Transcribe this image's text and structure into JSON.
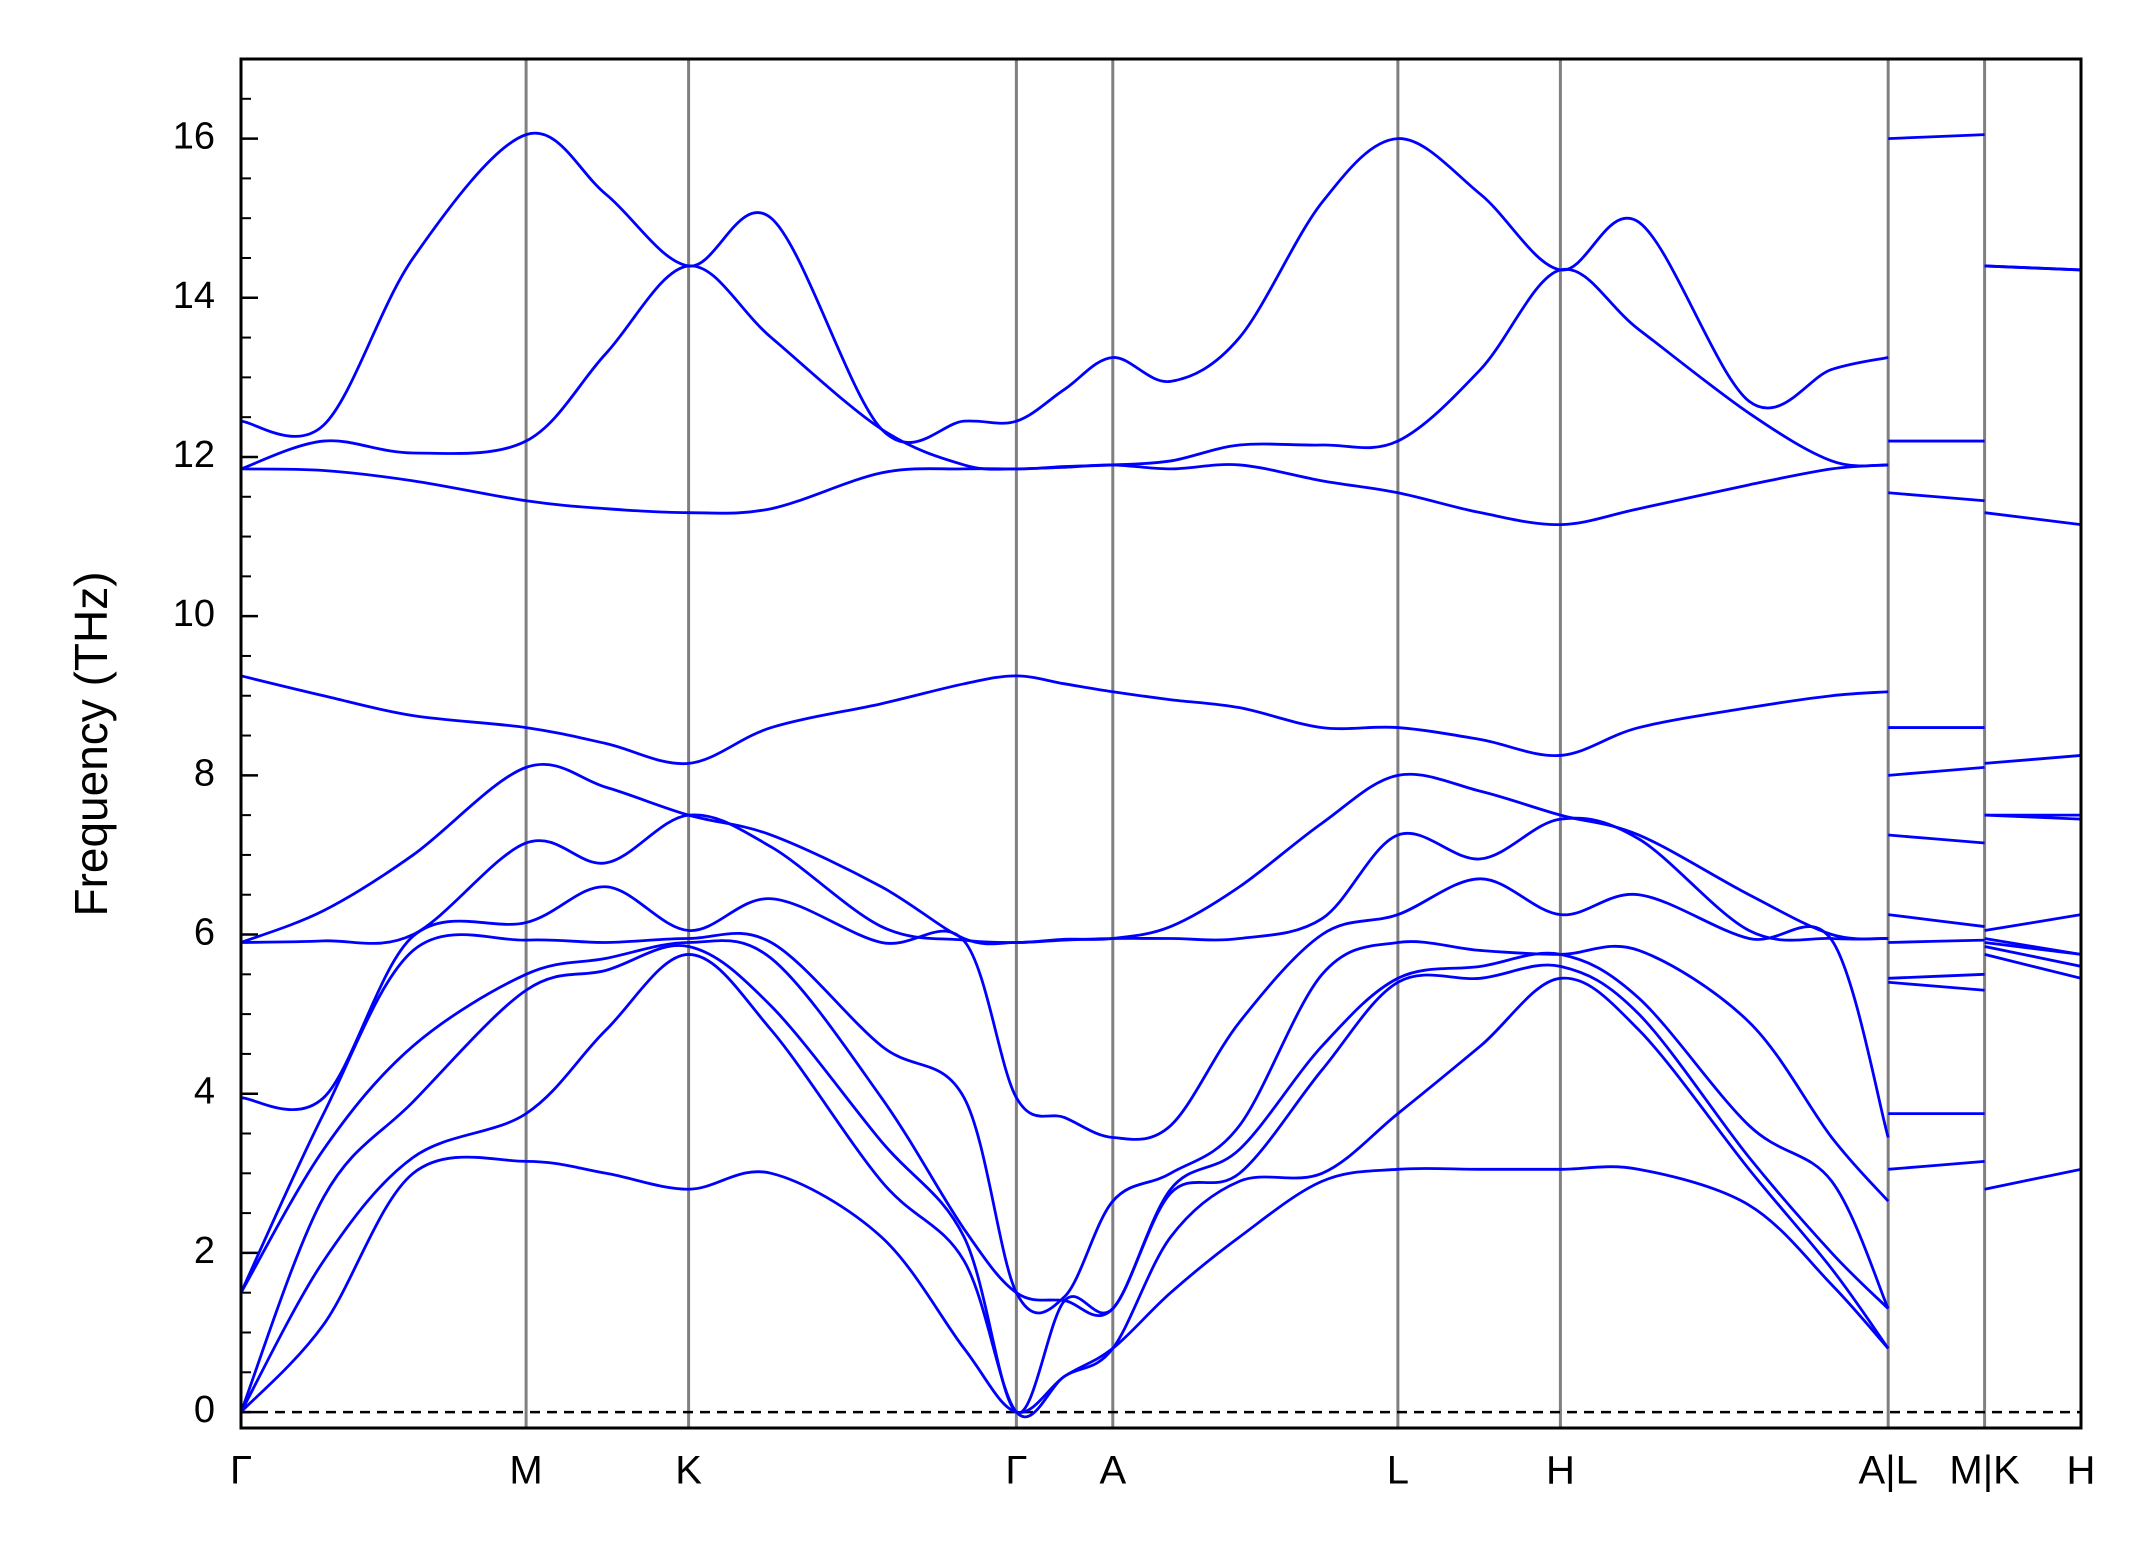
{
  "chart_data": {
    "type": "line",
    "ylabel": "Frequency (THz)",
    "x": [
      0,
      60,
      125,
      207,
      265,
      325,
      385,
      465,
      525,
      563,
      598,
      633,
      675,
      725,
      785,
      840,
      900,
      958,
      1015,
      1095,
      1155,
      1196,
      1196,
      1196,
      1266,
      1266,
      1266,
      1336
    ],
    "xlim": [
      0,
      1336
    ],
    "xticks": [
      {
        "value": 0,
        "label": "Γ"
      },
      {
        "value": 207,
        "label": "M"
      },
      {
        "value": 325,
        "label": "K"
      },
      {
        "value": 563,
        "label": "Γ"
      },
      {
        "value": 633,
        "label": "A"
      },
      {
        "value": 840,
        "label": "L"
      },
      {
        "value": 958,
        "label": "H"
      },
      {
        "value": 1196,
        "label": "A|L"
      },
      {
        "value": 1266,
        "label": "M|K"
      },
      {
        "value": 1336,
        "label": "H"
      }
    ],
    "ylim": [
      -0.2,
      17
    ],
    "yticks": [
      0,
      2,
      4,
      6,
      8,
      10,
      12,
      14,
      16
    ],
    "minor_yticks": [
      0.5,
      1,
      1.5,
      2.5,
      3,
      3.5,
      4.5,
      5,
      5.5,
      6.5,
      7,
      7.5,
      8.5,
      9,
      9.5,
      10.5,
      11,
      11.5,
      12.5,
      13,
      13.5,
      14.5,
      15,
      15.5,
      16.5
    ],
    "hline": 0,
    "series": [
      {
        "color": "#0000ff",
        "values": [
          0,
          1.1,
          3.0,
          3.15,
          3.0,
          2.8,
          3.0,
          2.2,
          0.8,
          0,
          0.45,
          0.8,
          1.5,
          2.2,
          2.9,
          3.05,
          3.05,
          3.05,
          3.05,
          2.6,
          1.6,
          0.8,
          null,
          3.05,
          3.15,
          null,
          2.8,
          3.05
        ]
      },
      {
        "color": "#0000ff",
        "values": [
          0,
          1.9,
          3.2,
          3.75,
          4.8,
          5.75,
          4.8,
          2.9,
          1.9,
          0,
          0.45,
          0.8,
          2.2,
          2.9,
          3.0,
          3.75,
          4.6,
          5.45,
          4.8,
          3.05,
          1.8,
          0.8,
          null,
          3.75,
          3.75,
          null,
          5.75,
          5.45
        ]
      },
      {
        "color": "#0000ff",
        "values": [
          0,
          2.7,
          3.9,
          5.3,
          5.55,
          5.85,
          5.1,
          3.4,
          2.2,
          0,
          1.4,
          1.3,
          2.75,
          3.0,
          4.3,
          5.4,
          5.45,
          5.6,
          5.0,
          3.2,
          2.0,
          1.3,
          null,
          5.4,
          5.3,
          null,
          5.85,
          5.6
        ]
      },
      {
        "color": "#0000ff",
        "values": [
          1.5,
          3.3,
          4.6,
          5.5,
          5.7,
          5.9,
          5.7,
          3.95,
          2.3,
          1.5,
          1.4,
          1.3,
          2.8,
          3.3,
          4.6,
          5.45,
          5.6,
          5.75,
          5.2,
          3.6,
          2.9,
          1.3,
          null,
          5.45,
          5.5,
          null,
          5.9,
          5.75
        ]
      },
      {
        "color": "#0000ff",
        "values": [
          1.5,
          3.75,
          5.8,
          5.93,
          5.9,
          5.95,
          5.9,
          4.6,
          3.95,
          1.5,
          1.45,
          2.65,
          3.0,
          3.6,
          5.5,
          5.9,
          5.8,
          5.75,
          5.8,
          4.9,
          3.45,
          2.65,
          null,
          5.9,
          5.93,
          null,
          5.95,
          5.75
        ]
      },
      {
        "color": "#0000ff",
        "values": [
          3.95,
          3.95,
          5.98,
          6.15,
          6.6,
          6.05,
          6.45,
          5.9,
          5.92,
          3.95,
          3.7,
          3.45,
          3.6,
          4.9,
          6.0,
          6.25,
          6.7,
          6.25,
          6.5,
          5.95,
          5.93,
          3.45,
          null,
          6.25,
          6.1,
          null,
          6.05,
          6.25
        ]
      },
      {
        "color": "#0000ff",
        "values": [
          5.9,
          5.92,
          6.0,
          7.15,
          6.9,
          7.5,
          7.1,
          6.1,
          5.93,
          5.9,
          5.93,
          5.95,
          5.95,
          5.95,
          6.2,
          7.25,
          6.95,
          7.45,
          7.2,
          6.05,
          5.95,
          5.95,
          null,
          7.25,
          7.15,
          null,
          7.5,
          7.45
        ]
      },
      {
        "color": "#0000ff",
        "values": [
          5.9,
          6.3,
          7.0,
          8.1,
          7.85,
          7.5,
          7.25,
          6.6,
          5.95,
          5.9,
          5.94,
          5.95,
          6.1,
          6.6,
          7.4,
          8.0,
          7.8,
          7.5,
          7.25,
          6.5,
          6.0,
          5.95,
          null,
          8.0,
          8.1,
          null,
          7.5,
          7.5
        ]
      },
      {
        "color": "#0000ff",
        "values": [
          9.25,
          9.0,
          8.75,
          8.6,
          8.4,
          8.15,
          8.6,
          8.9,
          9.15,
          9.25,
          9.15,
          9.05,
          8.95,
          8.85,
          8.6,
          8.6,
          8.45,
          8.25,
          8.6,
          8.85,
          9.0,
          9.05,
          null,
          8.6,
          8.6,
          null,
          8.15,
          8.25
        ]
      },
      {
        "color": "#0000ff",
        "values": [
          11.85,
          11.83,
          11.7,
          11.45,
          11.35,
          11.3,
          11.35,
          11.8,
          11.85,
          11.85,
          11.87,
          11.9,
          11.85,
          11.9,
          11.7,
          11.55,
          11.3,
          11.15,
          11.35,
          11.65,
          11.85,
          11.9,
          null,
          11.55,
          11.45,
          null,
          11.3,
          11.15
        ]
      },
      {
        "color": "#0000ff",
        "values": [
          11.85,
          12.2,
          12.05,
          12.2,
          13.3,
          14.4,
          13.5,
          12.35,
          11.9,
          11.85,
          11.88,
          11.9,
          11.95,
          12.15,
          12.15,
          12.2,
          13.1,
          14.35,
          13.6,
          12.55,
          11.95,
          11.9,
          null,
          12.2,
          12.2,
          null,
          14.4,
          14.35
        ]
      },
      {
        "color": "#0000ff",
        "values": [
          12.45,
          12.4,
          14.5,
          16.05,
          15.3,
          14.4,
          15.0,
          12.35,
          12.45,
          12.45,
          12.85,
          13.25,
          12.95,
          13.5,
          15.2,
          16.0,
          15.3,
          14.35,
          14.95,
          12.7,
          13.1,
          13.25,
          null,
          16.0,
          16.05,
          null,
          14.4,
          14.35
        ]
      }
    ]
  }
}
